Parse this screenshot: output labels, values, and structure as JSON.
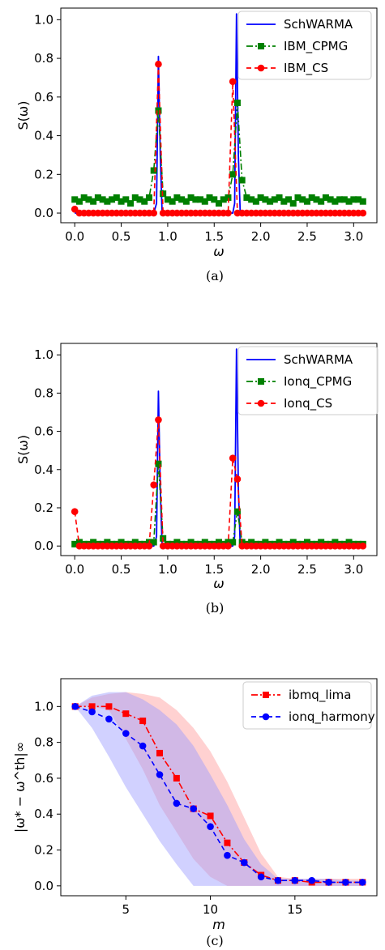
{
  "chart_data": [
    {
      "type": "line",
      "panel": "a",
      "caption": "(a)",
      "xlabel": "ω",
      "ylabel": "S(ω)",
      "xlim": [
        -0.15,
        3.25
      ],
      "ylim": [
        -0.05,
        1.06
      ],
      "xticks": [
        0.0,
        0.5,
        1.0,
        1.5,
        2.0,
        2.5,
        3.0
      ],
      "xtick_labels": [
        "0.0",
        "0.5",
        "1.0",
        "1.5",
        "2.0",
        "2.5",
        "3.0"
      ],
      "yticks": [
        0.0,
        0.2,
        0.4,
        0.6,
        0.8,
        1.0
      ],
      "ytick_labels": [
        "0.0",
        "0.2",
        "0.4",
        "0.6",
        "0.8",
        "1.0"
      ],
      "legend_position": "top-right",
      "series": [
        {
          "name": "SchWARMA",
          "color": "#0000ff",
          "style": "solid",
          "marker": "none",
          "x": [
            0.0,
            0.85,
            0.88,
            0.9,
            0.92,
            0.94,
            0.97,
            1.7,
            1.72,
            1.74,
            1.76,
            1.78,
            1.81,
            3.1
          ],
          "y": [
            0.0,
            0.0,
            0.05,
            0.81,
            0.3,
            0.0,
            0.0,
            0.0,
            0.05,
            1.03,
            0.3,
            0.0,
            0.0,
            0.0
          ]
        },
        {
          "name": "IBM_CPMG",
          "color": "#008000",
          "style": "dashdot",
          "marker": "square",
          "x": [
            0.0,
            0.05,
            0.1,
            0.15,
            0.2,
            0.25,
            0.3,
            0.35,
            0.4,
            0.45,
            0.5,
            0.55,
            0.6,
            0.65,
            0.7,
            0.75,
            0.8,
            0.85,
            0.9,
            0.95,
            1.0,
            1.05,
            1.1,
            1.15,
            1.2,
            1.25,
            1.3,
            1.35,
            1.4,
            1.45,
            1.5,
            1.55,
            1.6,
            1.65,
            1.7,
            1.75,
            1.8,
            1.85,
            1.9,
            1.95,
            2.0,
            2.05,
            2.1,
            2.15,
            2.2,
            2.25,
            2.3,
            2.35,
            2.4,
            2.45,
            2.5,
            2.55,
            2.6,
            2.65,
            2.7,
            2.75,
            2.8,
            2.85,
            2.9,
            2.95,
            3.0,
            3.05,
            3.1
          ],
          "y": [
            0.07,
            0.06,
            0.08,
            0.07,
            0.06,
            0.08,
            0.07,
            0.06,
            0.07,
            0.08,
            0.06,
            0.07,
            0.05,
            0.08,
            0.07,
            0.06,
            0.08,
            0.22,
            0.53,
            0.1,
            0.07,
            0.06,
            0.08,
            0.07,
            0.06,
            0.08,
            0.07,
            0.07,
            0.06,
            0.08,
            0.07,
            0.05,
            0.07,
            0.08,
            0.2,
            0.57,
            0.17,
            0.08,
            0.07,
            0.06,
            0.08,
            0.07,
            0.06,
            0.07,
            0.08,
            0.06,
            0.07,
            0.05,
            0.08,
            0.07,
            0.06,
            0.08,
            0.07,
            0.06,
            0.08,
            0.07,
            0.06,
            0.07,
            0.07,
            0.06,
            0.07,
            0.07,
            0.06
          ]
        },
        {
          "name": "IBM_CS",
          "color": "#ff0000",
          "style": "dashed",
          "marker": "circle",
          "x": [
            0.0,
            0.05,
            0.1,
            0.15,
            0.2,
            0.25,
            0.3,
            0.35,
            0.4,
            0.45,
            0.5,
            0.55,
            0.6,
            0.65,
            0.7,
            0.75,
            0.8,
            0.85,
            0.9,
            0.95,
            1.0,
            1.05,
            1.1,
            1.15,
            1.2,
            1.25,
            1.3,
            1.35,
            1.4,
            1.45,
            1.5,
            1.55,
            1.6,
            1.65,
            1.7,
            1.75,
            1.8,
            1.85,
            1.9,
            1.95,
            2.0,
            2.05,
            2.1,
            2.15,
            2.2,
            2.25,
            2.3,
            2.35,
            2.4,
            2.45,
            2.5,
            2.55,
            2.6,
            2.65,
            2.7,
            2.75,
            2.8,
            2.85,
            2.9,
            2.95,
            3.0,
            3.05,
            3.1
          ],
          "y": [
            0.02,
            0.0,
            0.0,
            0.0,
            0.0,
            0.0,
            0.0,
            0.0,
            0.0,
            0.0,
            0.0,
            0.0,
            0.0,
            0.0,
            0.0,
            0.0,
            0.0,
            0.0,
            0.77,
            0.0,
            0.0,
            0.0,
            0.0,
            0.0,
            0.0,
            0.0,
            0.0,
            0.0,
            0.0,
            0.0,
            0.0,
            0.0,
            0.0,
            0.0,
            0.68,
            0.0,
            0.0,
            0.0,
            0.0,
            0.0,
            0.0,
            0.0,
            0.0,
            0.0,
            0.0,
            0.0,
            0.0,
            0.0,
            0.0,
            0.0,
            0.0,
            0.0,
            0.0,
            0.0,
            0.0,
            0.0,
            0.0,
            0.0,
            0.0,
            0.0,
            0.0,
            0.0,
            0.0
          ]
        }
      ]
    },
    {
      "type": "line",
      "panel": "b",
      "caption": "(b)",
      "xlabel": "ω",
      "ylabel": "S(ω)",
      "xlim": [
        -0.15,
        3.25
      ],
      "ylim": [
        -0.05,
        1.06
      ],
      "xticks": [
        0.0,
        0.5,
        1.0,
        1.5,
        2.0,
        2.5,
        3.0
      ],
      "xtick_labels": [
        "0.0",
        "0.5",
        "1.0",
        "1.5",
        "2.0",
        "2.5",
        "3.0"
      ],
      "yticks": [
        0.0,
        0.2,
        0.4,
        0.6,
        0.8,
        1.0
      ],
      "ytick_labels": [
        "0.0",
        "0.2",
        "0.4",
        "0.6",
        "0.8",
        "1.0"
      ],
      "legend_position": "top-right",
      "series": [
        {
          "name": "SchWARMA",
          "color": "#0000ff",
          "style": "solid",
          "marker": "none",
          "x": [
            0.0,
            0.85,
            0.88,
            0.9,
            0.92,
            0.94,
            0.97,
            1.7,
            1.72,
            1.74,
            1.76,
            1.78,
            1.81,
            3.1
          ],
          "y": [
            0.0,
            0.0,
            0.05,
            0.81,
            0.3,
            0.0,
            0.0,
            0.0,
            0.05,
            1.03,
            0.3,
            0.0,
            0.0,
            0.0
          ]
        },
        {
          "name": "Ionq_CPMG",
          "color": "#008000",
          "style": "dashdot",
          "marker": "square",
          "x": [
            0.0,
            0.05,
            0.1,
            0.15,
            0.2,
            0.25,
            0.3,
            0.35,
            0.4,
            0.45,
            0.5,
            0.55,
            0.6,
            0.65,
            0.7,
            0.75,
            0.8,
            0.85,
            0.9,
            0.95,
            1.0,
            1.05,
            1.1,
            1.15,
            1.2,
            1.25,
            1.3,
            1.35,
            1.4,
            1.45,
            1.5,
            1.55,
            1.6,
            1.65,
            1.7,
            1.75,
            1.8,
            1.85,
            1.9,
            1.95,
            2.0,
            2.05,
            2.1,
            2.15,
            2.2,
            2.25,
            2.3,
            2.35,
            2.4,
            2.45,
            2.5,
            2.55,
            2.6,
            2.65,
            2.7,
            2.75,
            2.8,
            2.85,
            2.9,
            2.95,
            3.0,
            3.05,
            3.1
          ],
          "y": [
            0.01,
            0.02,
            0.01,
            0.01,
            0.02,
            0.01,
            0.01,
            0.02,
            0.01,
            0.01,
            0.02,
            0.01,
            0.01,
            0.02,
            0.01,
            0.01,
            0.02,
            0.02,
            0.43,
            0.04,
            0.01,
            0.01,
            0.02,
            0.01,
            0.01,
            0.02,
            0.01,
            0.01,
            0.02,
            0.01,
            0.01,
            0.02,
            0.01,
            0.02,
            0.02,
            0.18,
            0.02,
            0.01,
            0.02,
            0.01,
            0.01,
            0.02,
            0.01,
            0.01,
            0.02,
            0.01,
            0.01,
            0.02,
            0.01,
            0.01,
            0.02,
            0.01,
            0.01,
            0.02,
            0.01,
            0.01,
            0.02,
            0.01,
            0.01,
            0.02,
            0.01,
            0.01,
            0.01
          ]
        },
        {
          "name": "Ionq_CS",
          "color": "#ff0000",
          "style": "dashed",
          "marker": "circle",
          "x": [
            0.0,
            0.05,
            0.1,
            0.15,
            0.2,
            0.25,
            0.3,
            0.35,
            0.4,
            0.45,
            0.5,
            0.55,
            0.6,
            0.65,
            0.7,
            0.75,
            0.8,
            0.85,
            0.9,
            0.95,
            1.0,
            1.05,
            1.1,
            1.15,
            1.2,
            1.25,
            1.3,
            1.35,
            1.4,
            1.45,
            1.5,
            1.55,
            1.6,
            1.65,
            1.7,
            1.75,
            1.8,
            1.85,
            1.9,
            1.95,
            2.0,
            2.05,
            2.1,
            2.15,
            2.2,
            2.25,
            2.3,
            2.35,
            2.4,
            2.45,
            2.5,
            2.55,
            2.6,
            2.65,
            2.7,
            2.75,
            2.8,
            2.85,
            2.9,
            2.95,
            3.0,
            3.05,
            3.1
          ],
          "y": [
            0.18,
            0.0,
            0.0,
            0.0,
            0.0,
            0.0,
            0.0,
            0.0,
            0.0,
            0.0,
            0.0,
            0.0,
            0.0,
            0.0,
            0.0,
            0.0,
            0.0,
            0.32,
            0.66,
            0.0,
            0.0,
            0.0,
            0.0,
            0.0,
            0.0,
            0.0,
            0.0,
            0.0,
            0.0,
            0.0,
            0.0,
            0.0,
            0.0,
            0.0,
            0.46,
            0.35,
            0.0,
            0.0,
            0.0,
            0.0,
            0.0,
            0.0,
            0.0,
            0.0,
            0.0,
            0.0,
            0.0,
            0.0,
            0.0,
            0.0,
            0.0,
            0.0,
            0.0,
            0.0,
            0.0,
            0.0,
            0.0,
            0.0,
            0.0,
            0.0,
            0.0,
            0.0,
            0.0
          ]
        }
      ]
    },
    {
      "type": "line",
      "panel": "c",
      "caption": "(c)",
      "xlabel": "m",
      "ylabel": "|ω* − ω^th|∞",
      "xlim": [
        1.15,
        19.85
      ],
      "ylim": [
        -0.055,
        1.155
      ],
      "xticks": [
        5,
        10,
        15
      ],
      "xtick_labels": [
        "5",
        "10",
        "15"
      ],
      "yticks": [
        0.0,
        0.2,
        0.4,
        0.6,
        0.8,
        1.0
      ],
      "ytick_labels": [
        "0.0",
        "0.2",
        "0.4",
        "0.6",
        "0.8",
        "1.0"
      ],
      "legend_position": "top-right",
      "series": [
        {
          "name": "ibmq_lima",
          "color": "#ff0000",
          "style": "dashdot",
          "marker": "square",
          "x": [
            2,
            3,
            4,
            5,
            6,
            7,
            8,
            9,
            10,
            11,
            12,
            13,
            14,
            15,
            16,
            17,
            18,
            19
          ],
          "y": [
            1.0,
            1.0,
            1.0,
            0.96,
            0.92,
            0.74,
            0.6,
            0.43,
            0.39,
            0.24,
            0.13,
            0.06,
            0.03,
            0.03,
            0.02,
            0.02,
            0.02,
            0.02
          ],
          "band_upper": [
            1.0,
            1.05,
            1.07,
            1.08,
            1.07,
            1.05,
            0.98,
            0.88,
            0.75,
            0.58,
            0.38,
            0.18,
            0.05,
            0.04,
            0.04,
            0.04,
            0.04,
            0.04
          ],
          "band_lower": [
            1.0,
            1.0,
            0.98,
            0.82,
            0.65,
            0.45,
            0.3,
            0.15,
            0.05,
            0.0,
            0.0,
            0.0,
            0.0,
            0.0,
            0.0,
            0.0,
            0.0,
            0.0
          ],
          "band_color": "#ff9999"
        },
        {
          "name": "ionq_harmony",
          "color": "#0000ff",
          "style": "dashed",
          "marker": "circle",
          "x": [
            2,
            3,
            4,
            5,
            6,
            7,
            8,
            9,
            10,
            11,
            12,
            13,
            14,
            15,
            16,
            17,
            18,
            19
          ],
          "y": [
            1.0,
            0.97,
            0.93,
            0.85,
            0.78,
            0.62,
            0.46,
            0.43,
            0.33,
            0.17,
            0.13,
            0.05,
            0.03,
            0.03,
            0.03,
            0.02,
            0.02,
            0.02
          ],
          "band_upper": [
            1.0,
            1.06,
            1.08,
            1.08,
            1.04,
            0.98,
            0.9,
            0.78,
            0.62,
            0.45,
            0.26,
            0.12,
            0.04,
            0.04,
            0.04,
            0.04,
            0.03,
            0.03
          ],
          "band_lower": [
            1.0,
            0.88,
            0.72,
            0.55,
            0.4,
            0.25,
            0.12,
            0.0,
            0.0,
            0.0,
            0.0,
            0.0,
            0.0,
            0.0,
            0.0,
            0.0,
            0.0,
            0.0
          ],
          "band_color": "#9999ff"
        }
      ]
    }
  ]
}
